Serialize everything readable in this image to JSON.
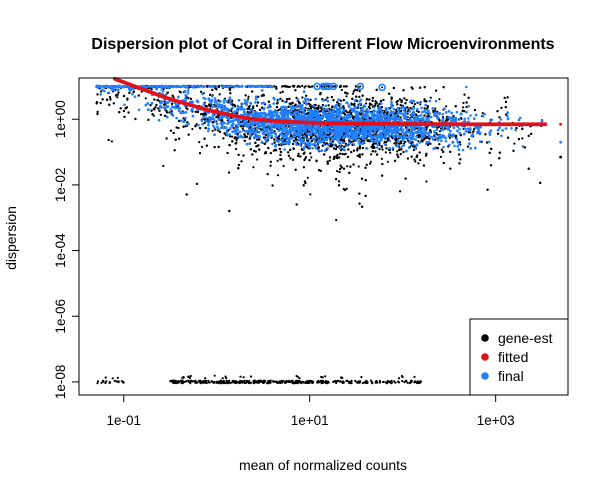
{
  "chart_data": {
    "type": "scatter",
    "title": "Dispersion plot of Coral in Different Flow Microenvironments",
    "xlabel": "mean of normalized counts",
    "ylabel": "dispersion",
    "x_scale": "log10",
    "y_scale": "log10",
    "xlim": [
      0.033,
      6000
    ],
    "ylim": [
      4e-09,
      18
    ],
    "x_ticks": [
      {
        "value": 0.1,
        "label": "1e-01"
      },
      {
        "value": 10,
        "label": "1e+01"
      },
      {
        "value": 1000,
        "label": "1e+03"
      }
    ],
    "y_ticks": [
      {
        "value": 1e-08,
        "label": "1e-08"
      },
      {
        "value": 1e-06,
        "label": "1e-06"
      },
      {
        "value": 0.0001,
        "label": "1e-04"
      },
      {
        "value": 0.01,
        "label": "1e-02"
      },
      {
        "value": 1,
        "label": "1e+00"
      }
    ],
    "grid": false,
    "legend_position": "bottom-right",
    "series": [
      {
        "name": "gene-est",
        "color": "#000000",
        "marker": "point",
        "description": "per-gene dispersion estimates; dense cloud from ~0.05 to ~3000 on x, ~1e-3 to ~10 on y, plus a floor row at 1e-08 for x ~0.05 to ~150"
      },
      {
        "name": "fitted",
        "color": "#e4101a",
        "marker": "line",
        "points": [
          [
            0.08,
            17
          ],
          [
            0.12,
            11
          ],
          [
            0.2,
            6.5
          ],
          [
            0.3,
            4.3
          ],
          [
            0.5,
            2.8
          ],
          [
            0.8,
            1.9
          ],
          [
            1.3,
            1.4
          ],
          [
            2,
            1.1
          ],
          [
            3,
            0.95
          ],
          [
            5,
            0.85
          ],
          [
            8,
            0.8
          ],
          [
            15,
            0.76
          ],
          [
            30,
            0.74
          ],
          [
            80,
            0.72
          ],
          [
            200,
            0.71
          ],
          [
            600,
            0.7
          ],
          [
            1500,
            0.7
          ],
          [
            2500,
            0.7
          ],
          [
            3500,
            0.7
          ],
          [
            5000,
            0.7
          ]
        ]
      },
      {
        "name": "final",
        "color": "#2080ff",
        "marker": "point",
        "description": "final (shrunk) dispersions; band from ~0.05 to ~3000 on x, ~0.15 to ~10 on y"
      }
    ],
    "highlighted_points": [
      {
        "series": "final",
        "x": 12,
        "y": 10
      },
      {
        "series": "final",
        "x": 14,
        "y": 10
      },
      {
        "series": "final",
        "x": 15,
        "y": 10
      },
      {
        "series": "final",
        "x": 16,
        "y": 10
      },
      {
        "series": "final",
        "x": 18,
        "y": 10
      },
      {
        "series": "final",
        "x": 35,
        "y": 10
      },
      {
        "series": "final",
        "x": 60,
        "y": 9.3
      }
    ],
    "outliers": [
      {
        "x": 5000,
        "gene_est": 0.07,
        "fitted": 0.7,
        "final": 0.2
      }
    ]
  }
}
